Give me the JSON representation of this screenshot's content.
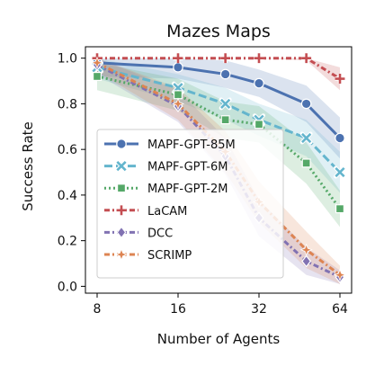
{
  "chart_data": {
    "type": "line",
    "title": "Mazes Maps",
    "xlabel": "Number of Agents",
    "ylabel": "Success Rate",
    "x_scale": "log2",
    "x_ticks": [
      8,
      16,
      32,
      64
    ],
    "x_tick_labels": [
      "8",
      "16",
      "32",
      "64"
    ],
    "ylim": [
      -0.03,
      1.05
    ],
    "y_ticks": [
      0.0,
      0.2,
      0.4,
      0.6,
      0.8,
      1.0
    ],
    "y_tick_labels": [
      "0.0",
      "0.2",
      "0.4",
      "0.6",
      "0.8",
      "1.0"
    ],
    "x": [
      8,
      16,
      24,
      32,
      48,
      64
    ],
    "legend_position": "lower-left",
    "grid": false,
    "series": [
      {
        "name": "MAPF-GPT-85M",
        "color": "#4c72b0",
        "marker": "circle",
        "dash": "solid",
        "values": [
          0.98,
          0.96,
          0.93,
          0.89,
          0.8,
          0.65
        ],
        "band": [
          0.06,
          0.05,
          0.06,
          0.06,
          0.08,
          0.09
        ]
      },
      {
        "name": "MAPF-GPT-6M",
        "color": "#64b5cd",
        "marker": "x",
        "dash": "long",
        "values": [
          0.96,
          0.87,
          0.8,
          0.73,
          0.65,
          0.5
        ],
        "band": [
          0.05,
          0.06,
          0.07,
          0.07,
          0.08,
          0.09
        ]
      },
      {
        "name": "MAPF-GPT-2M",
        "color": "#55a868",
        "marker": "square",
        "dash": "dotted",
        "values": [
          0.92,
          0.84,
          0.73,
          0.71,
          0.54,
          0.34
        ],
        "band": [
          0.06,
          0.07,
          0.08,
          0.08,
          0.09,
          0.08
        ]
      },
      {
        "name": "LaCAM",
        "color": "#c44e52",
        "marker": "plus",
        "dash": "dashdot",
        "values": [
          1.0,
          1.0,
          1.0,
          1.0,
          1.0,
          0.91
        ],
        "band": [
          0.0,
          0.0,
          0.0,
          0.0,
          0.01,
          0.05
        ]
      },
      {
        "name": "DCC",
        "color": "#8172b2",
        "marker": "diamond",
        "dash": "dashdot",
        "values": [
          0.97,
          0.79,
          0.57,
          0.3,
          0.11,
          0.04
        ],
        "band": [
          0.04,
          0.07,
          0.08,
          0.08,
          0.06,
          0.03
        ]
      },
      {
        "name": "SCRIMP",
        "color": "#dd8452",
        "marker": "star",
        "dash": "dashdot",
        "values": [
          0.98,
          0.8,
          0.59,
          0.37,
          0.16,
          0.05
        ],
        "band": [
          0.04,
          0.07,
          0.09,
          0.09,
          0.08,
          0.04
        ]
      }
    ]
  }
}
